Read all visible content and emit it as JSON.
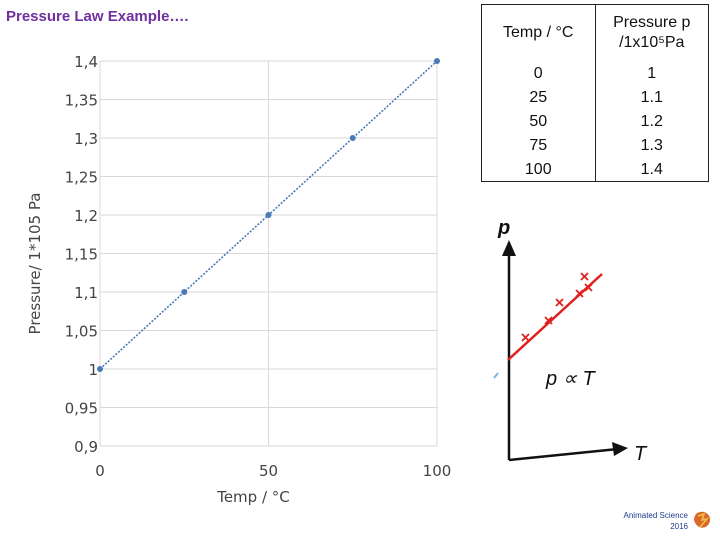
{
  "page": {
    "title": "Pressure Law Example….",
    "logo": {
      "line1": "Animated Science",
      "line2": "2016"
    }
  },
  "table": {
    "headers": [
      "Temp / °C",
      "Pressure  p /1x10⁵Pa"
    ],
    "rows": [
      [
        "0",
        "1"
      ],
      [
        "25",
        "1.1"
      ],
      [
        "50",
        "1.2"
      ],
      [
        "75",
        "1.3"
      ],
      [
        "100",
        "1.4"
      ]
    ]
  },
  "sketch": {
    "y_axis_label": "p",
    "x_axis_label": "T",
    "relation_label": "p ∝ T",
    "line_color": "#e02020",
    "marker_color": "#e02020",
    "marker": "cross"
  },
  "chart_data": {
    "type": "scatter",
    "x": [
      0,
      25,
      50,
      75,
      100
    ],
    "y": [
      1,
      1.1,
      1.2,
      1.3,
      1.4
    ],
    "xlabel": "Temp / °C",
    "ylabel": "Pressure/ 1*105 Pa",
    "xlim": [
      0,
      100
    ],
    "ylim": [
      0.9,
      1.4
    ],
    "x_ticks": [
      0,
      50,
      100
    ],
    "x_tick_labels": [
      "0",
      "50",
      "100"
    ],
    "y_ticks": [
      0.9,
      0.95,
      1,
      1.05,
      1.1,
      1.15,
      1.2,
      1.25,
      1.3,
      1.35,
      1.4
    ],
    "y_tick_labels": [
      "0,9",
      "0,95",
      "1",
      "1,05",
      "1,1",
      "1,15",
      "1,2",
      "1,25",
      "1,3",
      "1,35",
      "1,4"
    ],
    "grid": true,
    "series_color": "#4a7ab5",
    "line": "dotted-connected"
  }
}
